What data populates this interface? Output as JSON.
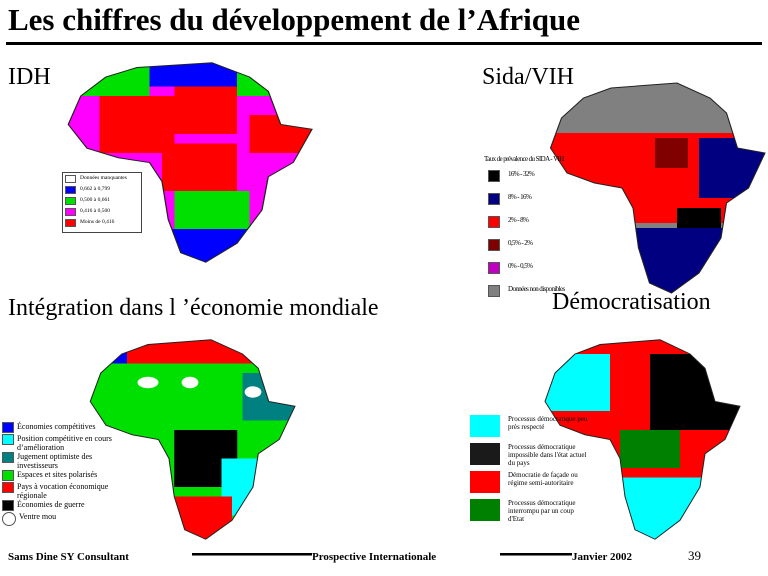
{
  "title": "Les chiffres du développement de l’Afrique",
  "panels": [
    {
      "title": "IDH",
      "legend": [
        {
          "label": "Données manquantes",
          "color": "#ffffff"
        },
        {
          "label": "0,662 à 0,799",
          "color": "#0000ff"
        },
        {
          "label": "0,500 à 0,661",
          "color": "#00e000"
        },
        {
          "label": "0,416 à 0,500",
          "color": "#ff00ff"
        },
        {
          "label": "Moins de 0,416",
          "color": "#ff0000"
        }
      ]
    },
    {
      "title": "Sida/VIH",
      "legend_title": "Taux de prévalence du SIDA - VIH",
      "legend": [
        {
          "label": "16% - 32%",
          "color": "#000000"
        },
        {
          "label": "8% - 16%",
          "color": "#000080"
        },
        {
          "label": "2% - 8%",
          "color": "#ff0000"
        },
        {
          "label": "0,5% - 2%",
          "color": "#800000"
        },
        {
          "label": "0% - 0,5%",
          "color": "#c000c0"
        },
        {
          "label": "Données non disponibles",
          "color": "#808080"
        }
      ]
    },
    {
      "title": "Intégration dans l ’économie mondiale",
      "legend": [
        {
          "label": "Économies compétitives",
          "color": "#0000ff"
        },
        {
          "label": "Position compétitive en cours d’amélioration",
          "color": "#00ffff"
        },
        {
          "label": "Jugement optimiste des investisseurs",
          "color": "#008080"
        },
        {
          "label": "Espaces et sites polarisés",
          "color": "#00e000"
        },
        {
          "label": "Pays à vocation économique régionale",
          "color": "#ff0000"
        },
        {
          "label": "Économies de guerre",
          "color": "#000000"
        },
        {
          "label": "Ventre mou",
          "color": "#ffffff"
        }
      ]
    },
    {
      "title": "Démocratisation",
      "legend": [
        {
          "label": "Processus démocratique peu près respecté",
          "color": "#00ffff"
        },
        {
          "label": "Processus démocratique impossible dans l'état actuel du pays",
          "color": "#1a1a1a"
        },
        {
          "label": "Démocratie de façade ou régime semi-autoritaire",
          "color": "#ff0000"
        },
        {
          "label": "Processus démocratique interrompu par un coup d'Etat",
          "color": "#008000"
        }
      ]
    }
  ],
  "footer": {
    "author": "Sams Dine SY Consultant",
    "center": "Prospective Internationale",
    "date": "Janvier 2002",
    "page": "39"
  }
}
